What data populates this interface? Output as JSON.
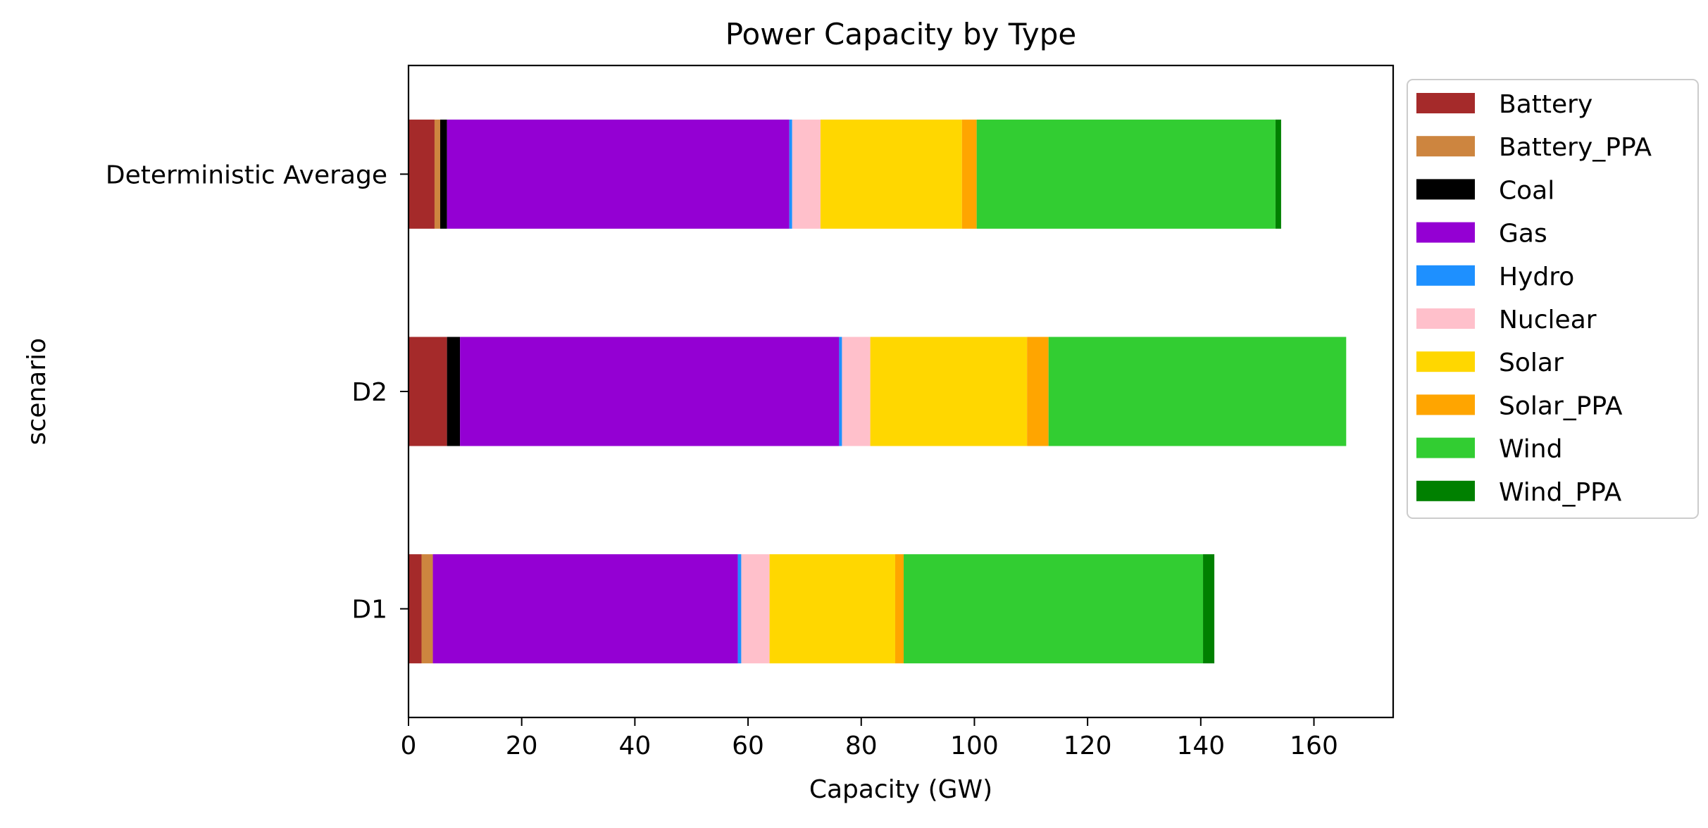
{
  "chart_data": {
    "type": "bar",
    "orientation": "horizontal",
    "stacked": true,
    "title": "Power Capacity by Type",
    "xlabel": "Capacity (GW)",
    "ylabel": "scenario",
    "xlim": [
      0,
      174
    ],
    "xticks": [
      0,
      20,
      40,
      60,
      80,
      100,
      120,
      140,
      160
    ],
    "categories": [
      "D1",
      "D2",
      "Deterministic Average"
    ],
    "grid": false,
    "legend_position": "outside-right",
    "series": [
      {
        "name": "Battery",
        "color": "#a52a2a",
        "values": [
          2.3,
          6.8,
          4.6
        ]
      },
      {
        "name": "Battery_PPA",
        "color": "#cd853f",
        "values": [
          2.0,
          0.0,
          1.0
        ]
      },
      {
        "name": "Coal",
        "color": "#000000",
        "values": [
          0.0,
          2.3,
          1.2
        ]
      },
      {
        "name": "Gas",
        "color": "#9400d3",
        "values": [
          53.9,
          67.0,
          60.5
        ]
      },
      {
        "name": "Hydro",
        "color": "#1e90ff",
        "values": [
          0.6,
          0.5,
          0.5
        ]
      },
      {
        "name": "Nuclear",
        "color": "#ffc0cb",
        "values": [
          5.0,
          5.0,
          5.0
        ]
      },
      {
        "name": "Solar",
        "color": "#ffd700",
        "values": [
          22.2,
          27.7,
          25.0
        ]
      },
      {
        "name": "Solar_PPA",
        "color": "#ffa500",
        "values": [
          1.5,
          3.8,
          2.6
        ]
      },
      {
        "name": "Wind",
        "color": "#32cd32",
        "values": [
          52.9,
          52.6,
          52.8
        ]
      },
      {
        "name": "Wind_PPA",
        "color": "#008000",
        "values": [
          2.0,
          0.0,
          1.0
        ]
      }
    ]
  }
}
